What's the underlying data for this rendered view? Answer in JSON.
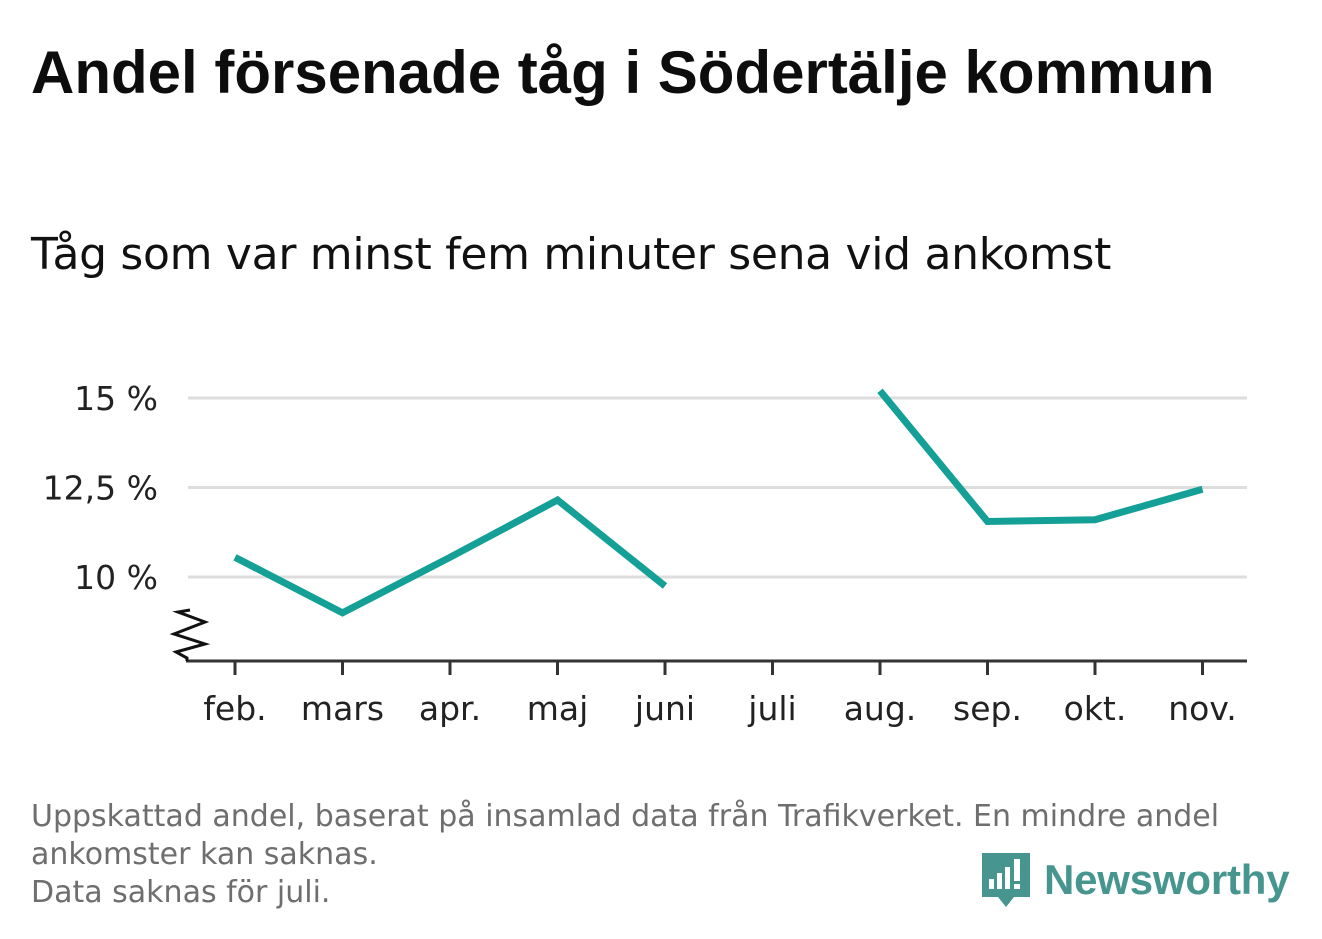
{
  "title": "Andel försenade tåg i Södertälje kommun",
  "subtitle": "Tåg som var minst fem minuter sena vid ankomst",
  "footer": {
    "line1": "Uppskattad andel, baserat på insamlad data från Trafikverket. En mindre andel",
    "line2": "ankomster kan saknas.",
    "line3": "Data saknas för juli."
  },
  "logo": {
    "text": "Newsworthy",
    "color": "#46958f"
  },
  "colors": {
    "line": "#14a096",
    "grid": "#dddddd",
    "axis": "#333333"
  },
  "chart_data": {
    "type": "line",
    "categories": [
      "feb.",
      "mars",
      "apr.",
      "maj",
      "juni",
      "juli",
      "aug.",
      "sep.",
      "okt.",
      "nov."
    ],
    "series": [
      {
        "values": [
          10.55,
          9.0,
          10.55,
          12.15,
          9.75,
          null,
          15.2,
          11.55,
          11.6,
          12.45
        ]
      }
    ],
    "y_ticks": [
      {
        "value": 10,
        "label": "10 %"
      },
      {
        "value": 12.5,
        "label": "12,5 %"
      },
      {
        "value": 15,
        "label": "15 %"
      }
    ],
    "ylim": [
      7.65,
      15.4
    ],
    "y_axis_break": true,
    "grid": true,
    "xlabel": "",
    "ylabel": ""
  }
}
